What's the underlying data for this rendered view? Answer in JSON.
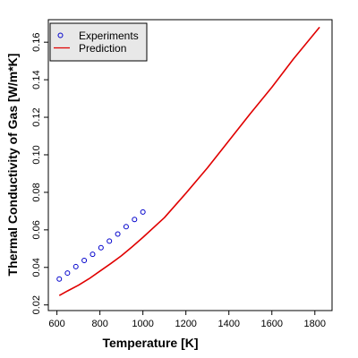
{
  "chart_data": {
    "type": "scatter",
    "xlabel": "Temperature [K]",
    "ylabel": "Thermal Conductivity of Gas [W/m*K]",
    "xlim": [
      560,
      1880
    ],
    "ylim": [
      0.017,
      0.172
    ],
    "x_ticks": [
      600,
      800,
      1000,
      1200,
      1400,
      1600,
      1800
    ],
    "y_ticks": [
      0.02,
      0.04,
      0.06,
      0.08,
      0.1,
      0.12,
      0.14,
      0.16
    ],
    "y_tick_labels": [
      "0.02",
      "0.04",
      "0.06",
      "0.08",
      "0.10",
      "0.12",
      "0.14",
      "0.16"
    ],
    "grid": false,
    "legend_position": "top-left",
    "series": [
      {
        "name": "Experiments",
        "kind": "points",
        "color": "#0000cc",
        "marker_label": "o",
        "x": [
          611,
          649,
          688,
          727,
          766,
          805,
          844,
          883,
          922,
          961,
          1000
        ],
        "y": [
          0.0338,
          0.037,
          0.0404,
          0.0437,
          0.047,
          0.0505,
          0.054,
          0.0578,
          0.0617,
          0.0655,
          0.0695
        ]
      },
      {
        "name": "Prediction",
        "kind": "line",
        "color": "#e00000",
        "x": [
          611,
          650,
          700,
          750,
          800,
          850,
          900,
          950,
          1000,
          1100,
          1200,
          1300,
          1400,
          1500,
          1600,
          1700,
          1822
        ],
        "y": [
          0.025,
          0.0275,
          0.0305,
          0.034,
          0.038,
          0.042,
          0.0462,
          0.051,
          0.056,
          0.0665,
          0.0795,
          0.093,
          0.1075,
          0.122,
          0.136,
          0.151,
          0.168
        ]
      }
    ]
  }
}
